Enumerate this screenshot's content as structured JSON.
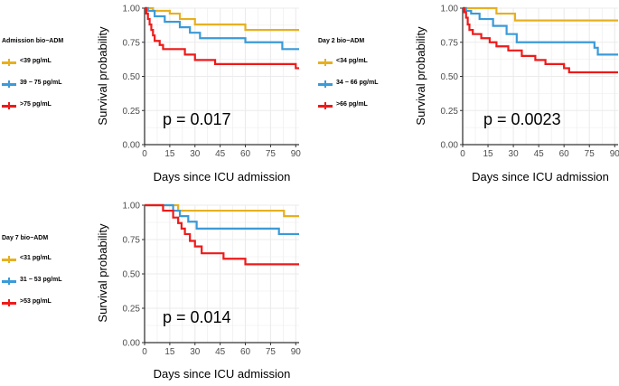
{
  "colors": {
    "low": "#E6B020",
    "mid": "#3B9AD8",
    "high": "#EE1A1A",
    "grid": "#EBEBEB",
    "axis": "#333333"
  },
  "chart_data": [
    {
      "id": "admission",
      "type": "line",
      "subtype": "kaplan-meier",
      "legend_title": "Admission bio−ADM",
      "xlabel": "Days since ICU admission",
      "ylabel": "Survival probability",
      "p_value_text": "p = 0.017",
      "xlim": [
        0,
        92
      ],
      "ylim": [
        0,
        1
      ],
      "x_ticks": [
        0,
        15,
        30,
        45,
        60,
        75,
        90
      ],
      "y_ticks": [
        0,
        0.25,
        0.5,
        0.75,
        1
      ],
      "y_tick_labels": [
        "0.00",
        "0.25",
        "0.50",
        "0.75",
        "1.00"
      ],
      "series": [
        {
          "name": "<39 pg/mL",
          "color_key": "low",
          "points": [
            [
              0,
              1
            ],
            [
              5,
              0.98
            ],
            [
              15,
              0.96
            ],
            [
              21,
              0.92
            ],
            [
              30,
              0.88
            ],
            [
              60,
              0.84
            ],
            [
              92,
              0.84
            ]
          ]
        },
        {
          "name": "39 − 75 pg/mL",
          "color_key": "mid",
          "points": [
            [
              0,
              1
            ],
            [
              2,
              0.98
            ],
            [
              6,
              0.94
            ],
            [
              12,
              0.9
            ],
            [
              21,
              0.86
            ],
            [
              27,
              0.82
            ],
            [
              33,
              0.78
            ],
            [
              60,
              0.75
            ],
            [
              82,
              0.7
            ],
            [
              92,
              0.7
            ]
          ]
        },
        {
          "name": ">75 pg/mL",
          "color_key": "high",
          "points": [
            [
              0,
              1
            ],
            [
              1,
              0.96
            ],
            [
              2,
              0.92
            ],
            [
              3,
              0.88
            ],
            [
              4,
              0.84
            ],
            [
              5,
              0.8
            ],
            [
              6,
              0.76
            ],
            [
              9,
              0.73
            ],
            [
              11,
              0.7
            ],
            [
              24,
              0.66
            ],
            [
              30,
              0.62
            ],
            [
              42,
              0.59
            ],
            [
              90,
              0.56
            ],
            [
              92,
              0.56
            ]
          ]
        }
      ]
    },
    {
      "id": "day2",
      "type": "line",
      "subtype": "kaplan-meier",
      "legend_title": "Day 2 bio−ADM",
      "xlabel": "Days since ICU admission",
      "ylabel": "Survival probability",
      "p_value_text": "p = 0.0023",
      "xlim": [
        0,
        92
      ],
      "ylim": [
        0,
        1
      ],
      "x_ticks": [
        0,
        15,
        30,
        45,
        60,
        75,
        90
      ],
      "y_ticks": [
        0,
        0.25,
        0.5,
        0.75,
        1
      ],
      "y_tick_labels": [
        "0.00",
        "0.25",
        "0.50",
        "0.75",
        "1.00"
      ],
      "series": [
        {
          "name": "<34 pg/mL",
          "color_key": "low",
          "points": [
            [
              0,
              1
            ],
            [
              20,
              0.96
            ],
            [
              31,
              0.91
            ],
            [
              92,
              0.91
            ]
          ]
        },
        {
          "name": "34 − 66 pg/mL",
          "color_key": "mid",
          "points": [
            [
              0,
              1
            ],
            [
              2,
              0.98
            ],
            [
              5,
              0.96
            ],
            [
              10,
              0.92
            ],
            [
              18,
              0.87
            ],
            [
              26,
              0.81
            ],
            [
              32,
              0.75
            ],
            [
              78,
              0.71
            ],
            [
              80,
              0.66
            ],
            [
              92,
              0.66
            ]
          ]
        },
        {
          "name": ">66 pg/mL",
          "color_key": "high",
          "points": [
            [
              0,
              1
            ],
            [
              1,
              0.97
            ],
            [
              2,
              0.93
            ],
            [
              3,
              0.88
            ],
            [
              4,
              0.84
            ],
            [
              6,
              0.81
            ],
            [
              11,
              0.78
            ],
            [
              16,
              0.75
            ],
            [
              20,
              0.72
            ],
            [
              27,
              0.69
            ],
            [
              35,
              0.65
            ],
            [
              43,
              0.62
            ],
            [
              49,
              0.59
            ],
            [
              60,
              0.56
            ],
            [
              63,
              0.53
            ],
            [
              92,
              0.53
            ]
          ]
        }
      ]
    },
    {
      "id": "day7",
      "type": "line",
      "subtype": "kaplan-meier",
      "legend_title": "Day 7 bio−ADM",
      "xlabel": "Days since ICU admission",
      "ylabel": "Survival probability",
      "p_value_text": "p = 0.014",
      "xlim": [
        0,
        92
      ],
      "ylim": [
        0,
        1
      ],
      "x_ticks": [
        0,
        15,
        30,
        45,
        60,
        75,
        90
      ],
      "y_ticks": [
        0,
        0.25,
        0.5,
        0.75,
        1
      ],
      "y_tick_labels": [
        "0.00",
        "0.25",
        "0.50",
        "0.75",
        "1.00"
      ],
      "series": [
        {
          "name": "<31 pg/mL",
          "color_key": "low",
          "points": [
            [
              0,
              1
            ],
            [
              20,
              0.96
            ],
            [
              83,
              0.92
            ],
            [
              92,
              0.92
            ]
          ]
        },
        {
          "name": "31 − 53 pg/mL",
          "color_key": "mid",
          "points": [
            [
              0,
              1
            ],
            [
              17,
              0.96
            ],
            [
              21,
              0.92
            ],
            [
              26,
              0.88
            ],
            [
              31,
              0.83
            ],
            [
              80,
              0.79
            ],
            [
              92,
              0.79
            ]
          ]
        },
        {
          "name": ">53 pg/mL",
          "color_key": "high",
          "points": [
            [
              0,
              1
            ],
            [
              11,
              0.96
            ],
            [
              17,
              0.91
            ],
            [
              20,
              0.87
            ],
            [
              22,
              0.83
            ],
            [
              24,
              0.79
            ],
            [
              27,
              0.74
            ],
            [
              30,
              0.7
            ],
            [
              34,
              0.65
            ],
            [
              47,
              0.61
            ],
            [
              60,
              0.57
            ],
            [
              92,
              0.57
            ]
          ]
        }
      ]
    }
  ]
}
